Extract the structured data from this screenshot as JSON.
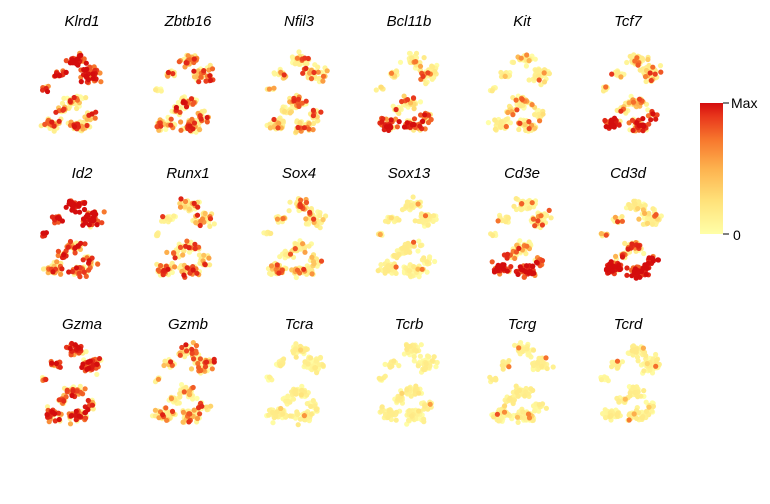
{
  "chart_data": {
    "type": "scatter",
    "description_kind": "small-multiples feature plots of gene expression",
    "panels": [
      {
        "gene": "Klrd1",
        "pattern": [
          0.8,
          0.35,
          0.45
        ]
      },
      {
        "gene": "Zbtb16",
        "pattern": [
          0.45,
          0.55,
          0.45
        ]
      },
      {
        "gene": "Nfil3",
        "pattern": [
          0.3,
          0.3,
          0.25
        ]
      },
      {
        "gene": "Bcl11b",
        "pattern": [
          0.15,
          0.3,
          0.75
        ]
      },
      {
        "gene": "Kit",
        "pattern": [
          0.1,
          0.25,
          0.15
        ]
      },
      {
        "gene": "Tcf7",
        "pattern": [
          0.25,
          0.3,
          0.8
        ]
      },
      {
        "gene": "Id2",
        "pattern": [
          0.95,
          0.55,
          0.55
        ]
      },
      {
        "gene": "Runx1",
        "pattern": [
          0.35,
          0.35,
          0.45
        ]
      },
      {
        "gene": "Sox4",
        "pattern": [
          0.2,
          0.15,
          0.3
        ]
      },
      {
        "gene": "Sox13",
        "pattern": [
          0.05,
          0.05,
          0.05
        ]
      },
      {
        "gene": "Cd3e",
        "pattern": [
          0.15,
          0.4,
          0.85
        ]
      },
      {
        "gene": "Cd3d",
        "pattern": [
          0.15,
          0.45,
          0.95
        ]
      },
      {
        "gene": "Gzma",
        "pattern": [
          0.7,
          0.55,
          0.65
        ]
      },
      {
        "gene": "Gzmb",
        "pattern": [
          0.45,
          0.2,
          0.35
        ]
      },
      {
        "gene": "Tcra",
        "pattern": [
          0.02,
          0.02,
          0.03
        ]
      },
      {
        "gene": "Tcrb",
        "pattern": [
          0.02,
          0.03,
          0.05
        ]
      },
      {
        "gene": "Tcrg",
        "pattern": [
          0.02,
          0.03,
          0.06
        ]
      },
      {
        "gene": "Tcrd",
        "pattern": [
          0.03,
          0.04,
          0.06
        ]
      }
    ],
    "colorscale": [
      "#ffffa8",
      "#ffe27a",
      "#fdb24e",
      "#f7772d",
      "#e8361c",
      "#d40d0d"
    ],
    "legend": {
      "max_label": "Max",
      "min_label": "0",
      "placement": "right"
    },
    "grid": false
  }
}
